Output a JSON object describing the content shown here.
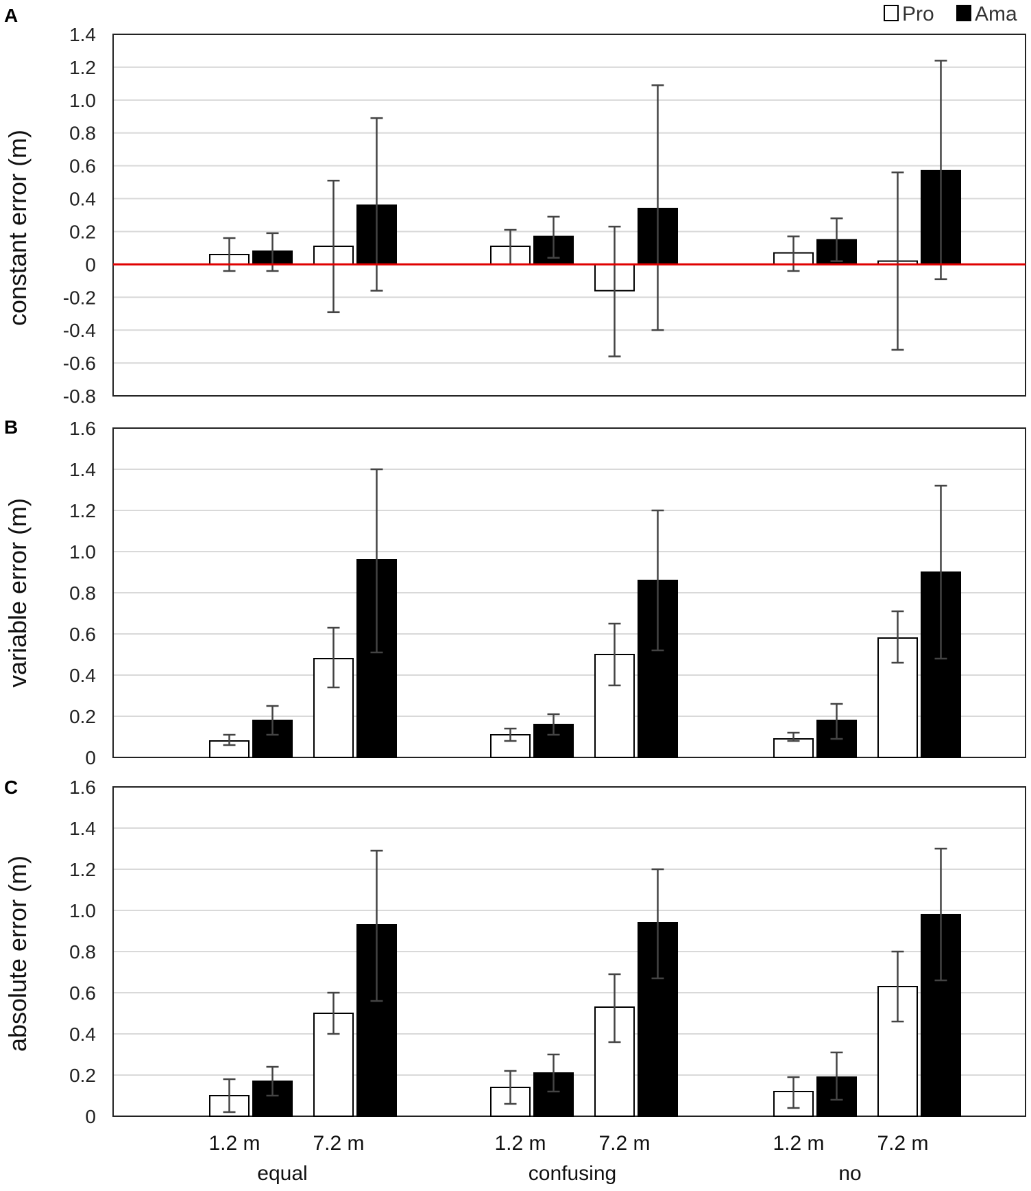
{
  "chart_data": [
    {
      "panel": "A",
      "type": "bar",
      "ylabel": "constant error (m)",
      "ylim": [
        -0.8,
        1.4
      ],
      "yticks": [
        -0.8,
        -0.6,
        -0.4,
        -0.2,
        0,
        0.2,
        0.4,
        0.6,
        0.8,
        1.0,
        1.2,
        1.4
      ],
      "ytick_labels": [
        "-0.8",
        "-0.6",
        "-0.4",
        "-0.2",
        "0",
        "0.2",
        "0.4",
        "0.6",
        "0.8",
        "1.0",
        "1.2",
        "1.4"
      ],
      "grid": true,
      "reference_line": 0,
      "reference_line_color": "#e00000",
      "series": [
        {
          "name": "Pro",
          "values": [
            0.06,
            0.11,
            0.11,
            -0.16,
            0.07,
            0.02
          ],
          "err_low": [
            -0.04,
            -0.29,
            0.0,
            -0.56,
            -0.04,
            -0.52
          ],
          "err_high": [
            0.16,
            0.51,
            0.21,
            0.23,
            0.17,
            0.56
          ]
        },
        {
          "name": "Ama",
          "values": [
            0.08,
            0.36,
            0.17,
            0.34,
            0.15,
            0.57
          ],
          "err_low": [
            -0.04,
            -0.16,
            0.04,
            -0.4,
            0.02,
            -0.09
          ],
          "err_high": [
            0.19,
            0.89,
            0.29,
            1.09,
            0.28,
            1.24
          ]
        }
      ]
    },
    {
      "panel": "B",
      "type": "bar",
      "ylabel": "variable error (m)",
      "ylim": [
        0,
        1.6
      ],
      "yticks": [
        0,
        0.2,
        0.4,
        0.6,
        0.8,
        1.0,
        1.2,
        1.4,
        1.6
      ],
      "ytick_labels": [
        "0",
        "0.2",
        "0.4",
        "0.6",
        "0.8",
        "1.0",
        "1.2",
        "1.4",
        "1.6"
      ],
      "grid": true,
      "series": [
        {
          "name": "Pro",
          "values": [
            0.08,
            0.48,
            0.11,
            0.5,
            0.09,
            0.58
          ],
          "err_low": [
            0.06,
            0.34,
            0.08,
            0.35,
            0.08,
            0.46
          ],
          "err_high": [
            0.11,
            0.63,
            0.14,
            0.65,
            0.12,
            0.71
          ]
        },
        {
          "name": "Ama",
          "values": [
            0.18,
            0.96,
            0.16,
            0.86,
            0.18,
            0.9
          ],
          "err_low": [
            0.11,
            0.51,
            0.11,
            0.52,
            0.09,
            0.48
          ],
          "err_high": [
            0.25,
            1.4,
            0.21,
            1.2,
            0.26,
            1.32
          ]
        }
      ]
    },
    {
      "panel": "C",
      "type": "bar",
      "ylabel": "absolute error (m)",
      "ylim": [
        0,
        1.6
      ],
      "yticks": [
        0,
        0.2,
        0.4,
        0.6,
        0.8,
        1.0,
        1.2,
        1.4,
        1.6
      ],
      "ytick_labels": [
        "0",
        "0.2",
        "0.4",
        "0.6",
        "0.8",
        "1.0",
        "1.2",
        "1.4",
        "1.6"
      ],
      "grid": true,
      "series": [
        {
          "name": "Pro",
          "values": [
            0.1,
            0.5,
            0.14,
            0.53,
            0.12,
            0.63
          ],
          "err_low": [
            0.02,
            0.4,
            0.06,
            0.36,
            0.04,
            0.46
          ],
          "err_high": [
            0.18,
            0.6,
            0.22,
            0.69,
            0.19,
            0.8
          ]
        },
        {
          "name": "Ama",
          "values": [
            0.17,
            0.93,
            0.21,
            0.94,
            0.19,
            0.98
          ],
          "err_low": [
            0.1,
            0.56,
            0.12,
            0.67,
            0.08,
            0.66
          ],
          "err_high": [
            0.24,
            1.29,
            0.3,
            1.2,
            0.31,
            1.3
          ]
        }
      ]
    }
  ],
  "categories": {
    "conditions": [
      "equal",
      "confusing",
      "no"
    ],
    "distances": [
      "1.2 m",
      "7.2 m"
    ]
  },
  "legend": [
    {
      "label": "Pro",
      "color": "#ffffff"
    },
    {
      "label": "Ama",
      "color": "#000000"
    }
  ],
  "colors": {
    "pro_fill": "#ffffff",
    "ama_fill": "#000000",
    "grid": "#d9d9d9",
    "axis": "#222222",
    "zero_line": "#e00000"
  }
}
